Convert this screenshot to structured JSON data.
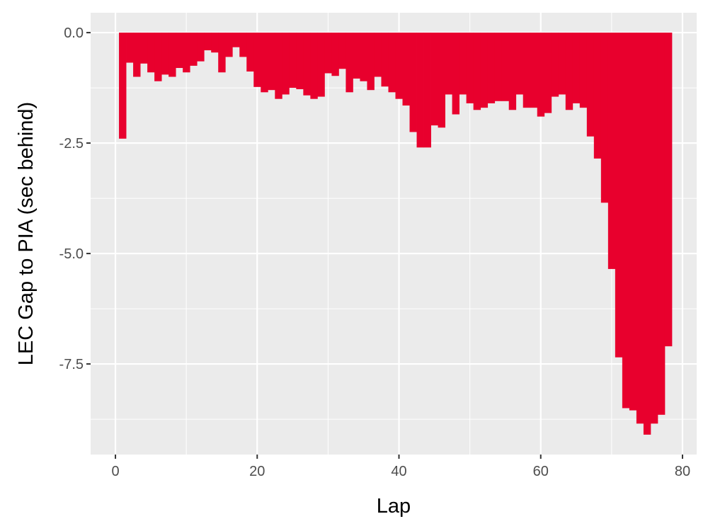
{
  "chart_data": {
    "type": "bar",
    "xlabel": "Lap",
    "ylabel": "LEC Gap to PIA (sec behind)",
    "xlim": [
      -3.5,
      82
    ],
    "ylim": [
      -9.55,
      0.45
    ],
    "x_ticks": [
      {
        "value": 0,
        "label": "0"
      },
      {
        "value": 20,
        "label": "20"
      },
      {
        "value": 40,
        "label": "40"
      },
      {
        "value": 60,
        "label": "60"
      },
      {
        "value": 80,
        "label": "80"
      }
    ],
    "y_ticks": [
      {
        "value": 0,
        "label": "0.0"
      },
      {
        "value": -2.5,
        "label": "-2.5"
      },
      {
        "value": -5,
        "label": "-5.0"
      },
      {
        "value": -7.5,
        "label": "-7.5"
      }
    ],
    "bar_color": "#E8002D",
    "panel_color": "#EBEBEB",
    "grid": true,
    "laps": [
      1,
      2,
      3,
      4,
      5,
      6,
      7,
      8,
      9,
      10,
      11,
      12,
      13,
      14,
      15,
      16,
      17,
      18,
      19,
      20,
      21,
      22,
      23,
      24,
      25,
      26,
      27,
      28,
      29,
      30,
      31,
      32,
      33,
      34,
      35,
      36,
      37,
      38,
      39,
      40,
      41,
      42,
      43,
      44,
      45,
      46,
      47,
      48,
      49,
      50,
      51,
      52,
      53,
      54,
      55,
      56,
      57,
      58,
      59,
      60,
      61,
      62,
      63,
      64,
      65,
      66,
      67,
      68,
      69,
      70,
      71,
      72,
      73,
      74,
      75,
      76,
      77,
      78
    ],
    "values": [
      -2.4,
      -0.68,
      -1.0,
      -0.7,
      -0.9,
      -1.1,
      -0.95,
      -1.0,
      -0.8,
      -0.9,
      -0.75,
      -0.65,
      -0.4,
      -0.45,
      -0.9,
      -0.55,
      -0.33,
      -0.55,
      -0.88,
      -1.23,
      -1.35,
      -1.3,
      -1.5,
      -1.4,
      -1.25,
      -1.28,
      -1.42,
      -1.5,
      -1.45,
      -0.92,
      -0.98,
      -0.82,
      -1.35,
      -1.04,
      -1.1,
      -1.3,
      -1.0,
      -1.22,
      -1.35,
      -1.5,
      -1.65,
      -2.25,
      -2.6,
      -2.6,
      -2.1,
      -2.15,
      -1.4,
      -1.85,
      -1.4,
      -1.6,
      -1.75,
      -1.7,
      -1.6,
      -1.55,
      -1.55,
      -1.75,
      -1.4,
      -1.7,
      -1.7,
      -1.9,
      -1.82,
      -1.45,
      -1.4,
      -1.75,
      -1.6,
      -1.7,
      -2.35,
      -2.85,
      -3.85,
      -5.35,
      -7.35,
      -8.5,
      -8.55,
      -8.85,
      -9.1,
      -8.85,
      -8.65,
      -7.1
    ]
  }
}
